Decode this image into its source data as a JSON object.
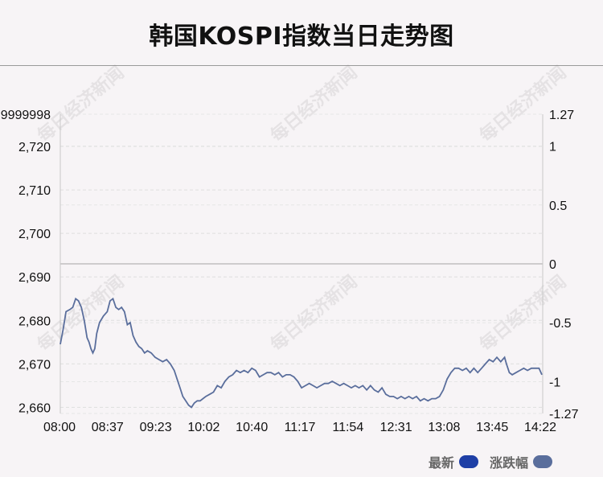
{
  "title": "韩国KOSPI指数当日走势图",
  "watermark": "每日经济新闻",
  "colors": {
    "line": "#5a6e9c",
    "latest_swatch": "#1e3fa6",
    "change_swatch": "#5a6e9c",
    "background": "#f7f4f6"
  },
  "legend": [
    {
      "label": "最新",
      "color": "#1e3fa6"
    },
    {
      "label": "涨跌幅",
      "color": "#5a6e9c"
    }
  ],
  "chart_data": {
    "type": "line",
    "title": "韩国KOSPI指数当日走势图",
    "x_ticks": [
      "08:00",
      "08:37",
      "09:23",
      "10:02",
      "10:40",
      "11:17",
      "11:54",
      "12:31",
      "13:08",
      "13:45",
      "14:22"
    ],
    "left_axis": {
      "ticks": [
        2660,
        2670,
        2680,
        2690,
        2700,
        2710,
        2720
      ],
      "tick_labels": [
        "2,660",
        "2,670",
        "2,680",
        "2,690",
        "2,700",
        "2,710",
        "2,720"
      ],
      "top_label": "9999998",
      "range": [
        2658.6,
        2727.4
      ]
    },
    "right_axis": {
      "ticks": [
        1.27,
        1,
        0.5,
        0,
        -0.5,
        -1,
        -1.27
      ],
      "tick_labels": [
        "1.27",
        "1",
        "0.5",
        "0",
        "-0.5",
        "-1",
        "-1.27"
      ],
      "range": [
        -1.27,
        1.27
      ],
      "zero_line": true
    },
    "series": [
      {
        "values": [
          [
            0,
            2674.5
          ],
          [
            3,
            2678.0
          ],
          [
            6,
            2682.0
          ],
          [
            10,
            2682.5
          ],
          [
            13,
            2683.0
          ],
          [
            16,
            2685.0
          ],
          [
            19,
            2684.5
          ],
          [
            22,
            2683.0
          ],
          [
            25,
            2680.0
          ],
          [
            28,
            2676.0
          ],
          [
            30,
            2675.0
          ],
          [
            32,
            2673.5
          ],
          [
            34,
            2672.5
          ],
          [
            36,
            2673.5
          ],
          [
            38,
            2677.0
          ],
          [
            41,
            2679.5
          ],
          [
            45,
            2681.0
          ],
          [
            49,
            2682.0
          ],
          [
            52,
            2684.5
          ],
          [
            55,
            2685.0
          ],
          [
            58,
            2683.0
          ],
          [
            61,
            2682.5
          ],
          [
            64,
            2683.0
          ],
          [
            67,
            2682.0
          ],
          [
            70,
            2679.0
          ],
          [
            73,
            2679.5
          ],
          [
            76,
            2676.5
          ],
          [
            79,
            2675.0
          ],
          [
            82,
            2674.0
          ],
          [
            85,
            2673.5
          ],
          [
            88,
            2672.5
          ],
          [
            91,
            2673.0
          ],
          [
            95,
            2672.5
          ],
          [
            99,
            2671.5
          ],
          [
            103,
            2671.0
          ],
          [
            107,
            2670.5
          ],
          [
            111,
            2671.0
          ],
          [
            115,
            2670.0
          ],
          [
            119,
            2668.5
          ],
          [
            122,
            2666.5
          ],
          [
            125,
            2664.5
          ],
          [
            128,
            2662.5
          ],
          [
            131,
            2661.5
          ],
          [
            134,
            2660.5
          ],
          [
            137,
            2660.0
          ],
          [
            140,
            2661.0
          ],
          [
            143,
            2661.5
          ],
          [
            146,
            2661.5
          ],
          [
            149,
            2662.0
          ],
          [
            152,
            2662.5
          ],
          [
            156,
            2663.0
          ],
          [
            160,
            2663.5
          ],
          [
            164,
            2665.0
          ],
          [
            168,
            2664.5
          ],
          [
            172,
            2666.0
          ],
          [
            176,
            2667.0
          ],
          [
            180,
            2667.5
          ],
          [
            184,
            2668.5
          ],
          [
            188,
            2668.0
          ],
          [
            192,
            2668.5
          ],
          [
            196,
            2668.0
          ],
          [
            200,
            2669.0
          ],
          [
            204,
            2668.5
          ],
          [
            208,
            2667.0
          ],
          [
            212,
            2667.5
          ],
          [
            216,
            2668.0
          ],
          [
            220,
            2668.0
          ],
          [
            224,
            2667.5
          ],
          [
            228,
            2668.0
          ],
          [
            232,
            2667.0
          ],
          [
            236,
            2667.5
          ],
          [
            240,
            2667.5
          ],
          [
            244,
            2667.0
          ],
          [
            248,
            2666.0
          ],
          [
            252,
            2664.5
          ],
          [
            256,
            2665.0
          ],
          [
            260,
            2665.5
          ],
          [
            264,
            2665.0
          ],
          [
            268,
            2664.5
          ],
          [
            272,
            2665.0
          ],
          [
            276,
            2665.5
          ],
          [
            280,
            2665.5
          ],
          [
            284,
            2666.0
          ],
          [
            288,
            2665.5
          ],
          [
            292,
            2665.0
          ],
          [
            296,
            2665.5
          ],
          [
            300,
            2665.0
          ],
          [
            304,
            2664.5
          ],
          [
            308,
            2665.0
          ],
          [
            312,
            2664.5
          ],
          [
            316,
            2665.0
          ],
          [
            320,
            2664.0
          ],
          [
            324,
            2665.0
          ],
          [
            328,
            2664.0
          ],
          [
            332,
            2663.5
          ],
          [
            336,
            2664.5
          ],
          [
            340,
            2663.0
          ],
          [
            344,
            2662.5
          ],
          [
            348,
            2662.5
          ],
          [
            352,
            2662.0
          ],
          [
            356,
            2662.5
          ],
          [
            360,
            2662.0
          ],
          [
            364,
            2662.5
          ],
          [
            368,
            2662.0
          ],
          [
            372,
            2662.5
          ],
          [
            376,
            2661.5
          ],
          [
            380,
            2662.0
          ],
          [
            384,
            2661.5
          ],
          [
            388,
            2662.0
          ],
          [
            392,
            2662.0
          ],
          [
            396,
            2662.5
          ],
          [
            400,
            2664.0
          ],
          [
            404,
            2666.5
          ],
          [
            408,
            2668.0
          ],
          [
            412,
            2669.0
          ],
          [
            416,
            2669.0
          ],
          [
            420,
            2668.5
          ],
          [
            424,
            2669.0
          ],
          [
            428,
            2668.0
          ],
          [
            432,
            2669.0
          ],
          [
            436,
            2668.0
          ],
          [
            440,
            2669.0
          ],
          [
            444,
            2670.0
          ],
          [
            448,
            2671.0
          ],
          [
            452,
            2670.5
          ],
          [
            456,
            2671.5
          ],
          [
            460,
            2670.5
          ],
          [
            464,
            2671.5
          ],
          [
            466,
            2670.0
          ],
          [
            469,
            2668.0
          ],
          [
            472,
            2667.5
          ],
          [
            476,
            2668.0
          ],
          [
            480,
            2668.5
          ],
          [
            484,
            2669.0
          ],
          [
            488,
            2668.5
          ],
          [
            492,
            2669.0
          ],
          [
            496,
            2669.0
          ],
          [
            500,
            2669.0
          ],
          [
            503,
            2667.5
          ]
        ]
      }
    ],
    "x_range_minutes": [
      0,
      503
    ],
    "grid": true
  }
}
